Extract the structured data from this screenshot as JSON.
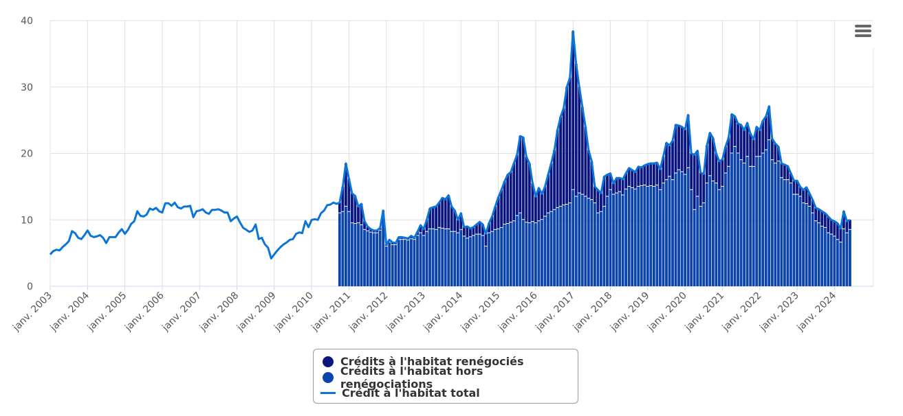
{
  "chart_data": {
    "type": "bar",
    "stacked": true,
    "title": "",
    "xlabel": "",
    "ylabel": "",
    "ylim": [
      0,
      40
    ],
    "yticks": [
      "0",
      "10",
      "20",
      "30",
      "40"
    ],
    "xticks": [
      "janv. 2003",
      "janv. 2004",
      "janv. 2005",
      "janv. 2006",
      "janv. 2007",
      "janv. 2008",
      "janv. 2009",
      "janv. 2010",
      "janv. 2011",
      "janv. 2012",
      "janv. 2013",
      "janv. 2014",
      "janv. 2015",
      "janv. 2016",
      "janv. 2017",
      "janv. 2018",
      "janv. 2019",
      "janv. 2020",
      "janv. 2021",
      "janv. 2022",
      "janv. 2023",
      "janv. 2024"
    ],
    "x_start": "2003-01",
    "frequency": "monthly",
    "grid": true,
    "legend_position": "bottom-center",
    "colors": {
      "renegocies": "#0a1580",
      "hors": "#0b44ab",
      "total": "#0a74d8"
    },
    "series": [
      {
        "name": "Crédits à l'habitat renégociés",
        "kind": "bar",
        "start": "2010-10",
        "values": [
          1.6,
          3.8,
          6.5,
          5.0,
          4.5,
          4.2,
          2.5,
          3.2,
          1.3,
          0.7,
          0.5,
          0.4,
          0.4,
          0.4,
          0.4,
          0.3,
          0.4,
          0.4,
          0.3,
          0.4,
          0.4,
          0.3,
          0.3,
          0.5,
          0.3,
          0.6,
          1.2,
          1.0,
          1.8,
          3.1,
          3.3,
          3.5,
          3.8,
          4.6,
          4.5,
          5.1,
          3.8,
          3.2,
          2.0,
          2.5,
          1.4,
          1.8,
          1.3,
          1.3,
          1.5,
          1.9,
          1.7,
          1.9,
          1.5,
          2.3,
          3.5,
          4.8,
          5.7,
          6.5,
          7.4,
          7.6,
          8.7,
          9.2,
          11.6,
          12.4,
          9.9,
          9.0,
          5.8,
          4.0,
          5.0,
          3.9,
          4.5,
          5.8,
          7.3,
          9.0,
          11.7,
          13.5,
          14.6,
          17.7,
          18.9,
          23.9,
          20.0,
          16.0,
          13.2,
          10.5,
          7.3,
          5.8,
          2.5,
          3.5,
          2.8,
          4.5,
          3.3,
          2.5,
          1.7,
          2.3,
          2.1,
          2.4,
          2.4,
          2.8,
          2.7,
          2.6,
          3.0,
          2.8,
          3.0,
          3.4,
          3.4,
          3.5,
          3.4,
          3.1,
          4.0,
          5.6,
          4.7,
          5.9,
          7.3,
          6.7,
          6.8,
          6.8,
          8.0,
          5.5,
          8.3,
          6.9,
          5.1,
          4.4,
          5.7,
          6.5,
          6.5,
          4.5,
          4.3,
          4.1,
          4.0,
          4.4,
          5.9,
          4.6,
          4.5,
          5.3,
          5.0,
          5.1,
          5.0,
          4.1,
          4.5,
          4.0,
          4.9,
          5.1,
          5.1,
          3.2,
          3.0,
          2.2,
          2.2,
          2.3,
          2.1,
          1.5,
          2.1,
          2.1,
          1.5,
          2.0,
          2.5,
          2.0,
          2.0,
          2.0,
          2.1,
          2.3,
          2.2,
          2.5,
          2.2,
          2.3,
          2.5,
          2.1,
          2.7,
          1.8,
          1.5
        ]
      },
      {
        "name": "Crédits à l'habitat hors renégociations",
        "kind": "bar",
        "start": "2010-10",
        "values": [
          11.0,
          11.2,
          12.0,
          11.2,
          9.5,
          9.4,
          9.5,
          9.2,
          8.5,
          8.3,
          8.1,
          8.0,
          8.0,
          8.4,
          11.0,
          6.0,
          6.6,
          6.2,
          6.2,
          7.0,
          7.0,
          7.0,
          6.9,
          7.1,
          7.0,
          7.6,
          8.0,
          7.6,
          8.2,
          8.6,
          8.6,
          8.5,
          8.8,
          8.7,
          8.6,
          8.6,
          8.2,
          8.2,
          8.0,
          8.5,
          7.5,
          7.2,
          7.4,
          7.6,
          7.8,
          7.8,
          7.6,
          6.0,
          8.0,
          8.2,
          8.5,
          8.6,
          8.8,
          9.3,
          9.4,
          9.6,
          9.8,
          10.6,
          11.0,
          10.0,
          9.6,
          9.5,
          9.7,
          9.5,
          9.8,
          10.0,
          10.5,
          11.0,
          11.2,
          11.5,
          11.8,
          12.0,
          12.2,
          12.3,
          12.5,
          14.5,
          13.5,
          14.0,
          13.8,
          13.5,
          13.2,
          13.0,
          12.5,
          11.0,
          11.2,
          12.0,
          13.5,
          14.5,
          13.8,
          14.0,
          14.2,
          13.7,
          14.6,
          15.0,
          14.8,
          14.6,
          15.0,
          15.1,
          15.2,
          15.0,
          15.1,
          15.0,
          15.2,
          14.5,
          15.5,
          16.0,
          16.5,
          16.0,
          17.0,
          17.5,
          17.2,
          16.8,
          17.8,
          14.5,
          11.5,
          13.5,
          12.0,
          12.5,
          15.5,
          16.6,
          15.8,
          15.5,
          14.5,
          15.0,
          17.0,
          18.0,
          20.0,
          21.0,
          20.0,
          19.0,
          18.5,
          19.5,
          18.0,
          18.0,
          19.5,
          19.5,
          20.0,
          20.5,
          22.0,
          19.0,
          18.5,
          18.8,
          16.3,
          16.0,
          16.0,
          15.5,
          13.8,
          13.8,
          13.5,
          12.5,
          12.4,
          12.0,
          11.0,
          9.8,
          9.5,
          9.0,
          8.8,
          8.0,
          7.8,
          7.5,
          7.0,
          6.6,
          8.6,
          8.0,
          8.5
        ]
      },
      {
        "name": "Crédit à l'habitat total",
        "kind": "line",
        "start": "2003-01",
        "values": [
          4.8,
          5.3,
          5.5,
          5.4,
          5.9,
          6.3,
          6.8,
          8.3,
          8.0,
          7.3,
          7.1,
          7.7,
          8.4,
          7.6,
          7.4,
          7.5,
          7.7,
          7.3,
          6.5,
          7.4,
          7.4,
          7.4,
          8.1,
          8.6,
          7.9,
          8.5,
          9.4,
          9.8,
          11.3,
          10.6,
          10.5,
          10.8,
          11.7,
          11.5,
          11.8,
          11.3,
          11.1,
          12.5,
          12.5,
          12.1,
          12.6,
          11.9,
          11.7,
          12.0,
          12.0,
          12.1,
          10.4,
          11.3,
          11.4,
          11.6,
          11.1,
          10.9,
          11.5,
          11.5,
          11.6,
          11.4,
          11.1,
          11.1,
          9.8,
          10.2,
          10.5,
          9.6,
          8.8,
          8.5,
          8.2,
          8.4,
          9.3,
          7.1,
          7.3,
          6.3,
          5.8,
          4.2,
          4.8,
          5.4,
          5.9,
          6.3,
          6.6,
          7.0,
          7.1,
          7.9,
          8.1,
          8.0,
          9.8,
          8.9,
          10.0,
          10.1,
          10.0,
          11.0,
          11.4,
          12.2,
          12.3,
          12.6,
          12.4,
          12.6,
          15.0,
          18.5,
          16.2,
          14.0,
          13.6,
          12.0,
          12.4,
          9.8,
          9.0,
          8.6,
          8.4,
          8.4,
          8.8,
          11.4,
          6.3,
          7.0,
          6.6,
          6.5,
          7.4,
          7.4,
          7.3,
          7.2,
          7.6,
          7.3,
          8.2,
          9.2,
          8.6,
          10.0,
          11.7,
          11.9,
          12.0,
          12.6,
          13.3,
          13.1,
          13.7,
          12.0,
          11.4,
          10.0,
          11.0,
          8.9,
          9.0,
          8.7,
          8.9,
          9.3,
          9.7,
          9.3,
          7.9,
          9.5,
          10.5,
          12.0,
          13.4,
          14.5,
          15.8,
          16.8,
          17.2,
          18.5,
          19.8,
          22.6,
          22.4,
          19.5,
          18.5,
          15.5,
          13.5,
          14.8,
          13.9,
          15.0,
          16.8,
          18.5,
          20.5,
          23.5,
          25.5,
          26.8,
          30.0,
          31.4,
          38.4,
          33.5,
          30.0,
          27.0,
          24.0,
          20.5,
          18.8,
          15.0,
          14.5,
          14.0,
          16.5,
          16.8,
          17.0,
          15.5,
          16.3,
          16.3,
          16.1,
          17.0,
          17.8,
          17.5,
          17.2,
          18.0,
          17.9,
          18.2,
          18.4,
          18.5,
          18.5,
          18.6,
          17.6,
          19.5,
          21.6,
          21.2,
          21.9,
          24.3,
          24.2,
          24.0,
          23.6,
          25.8,
          20.0,
          19.8,
          20.4,
          17.1,
          16.9,
          21.2,
          23.1,
          22.3,
          20.0,
          18.8,
          19.1,
          21.0,
          22.4,
          25.9,
          25.6,
          24.5,
          24.3,
          23.5,
          24.6,
          23.0,
          22.1,
          24.0,
          23.5,
          24.9,
          25.6,
          27.1,
          22.2,
          21.5,
          21.0,
          18.5,
          18.3,
          18.1,
          17.0,
          15.9,
          15.9,
          15.0,
          14.5,
          14.9,
          14.0,
          13.0,
          11.8,
          11.6,
          11.3,
          11.0,
          10.5,
          10.0,
          9.8,
          9.5,
          8.7,
          11.3,
          9.8,
          10.0
        ]
      }
    ]
  },
  "legend": {
    "items": [
      "Crédits à l'habitat renégociés",
      "Crédits à l'habitat hors renégociations",
      "Crédit à l'habitat total"
    ]
  },
  "menu": {
    "icon": "hamburger-menu-icon"
  }
}
